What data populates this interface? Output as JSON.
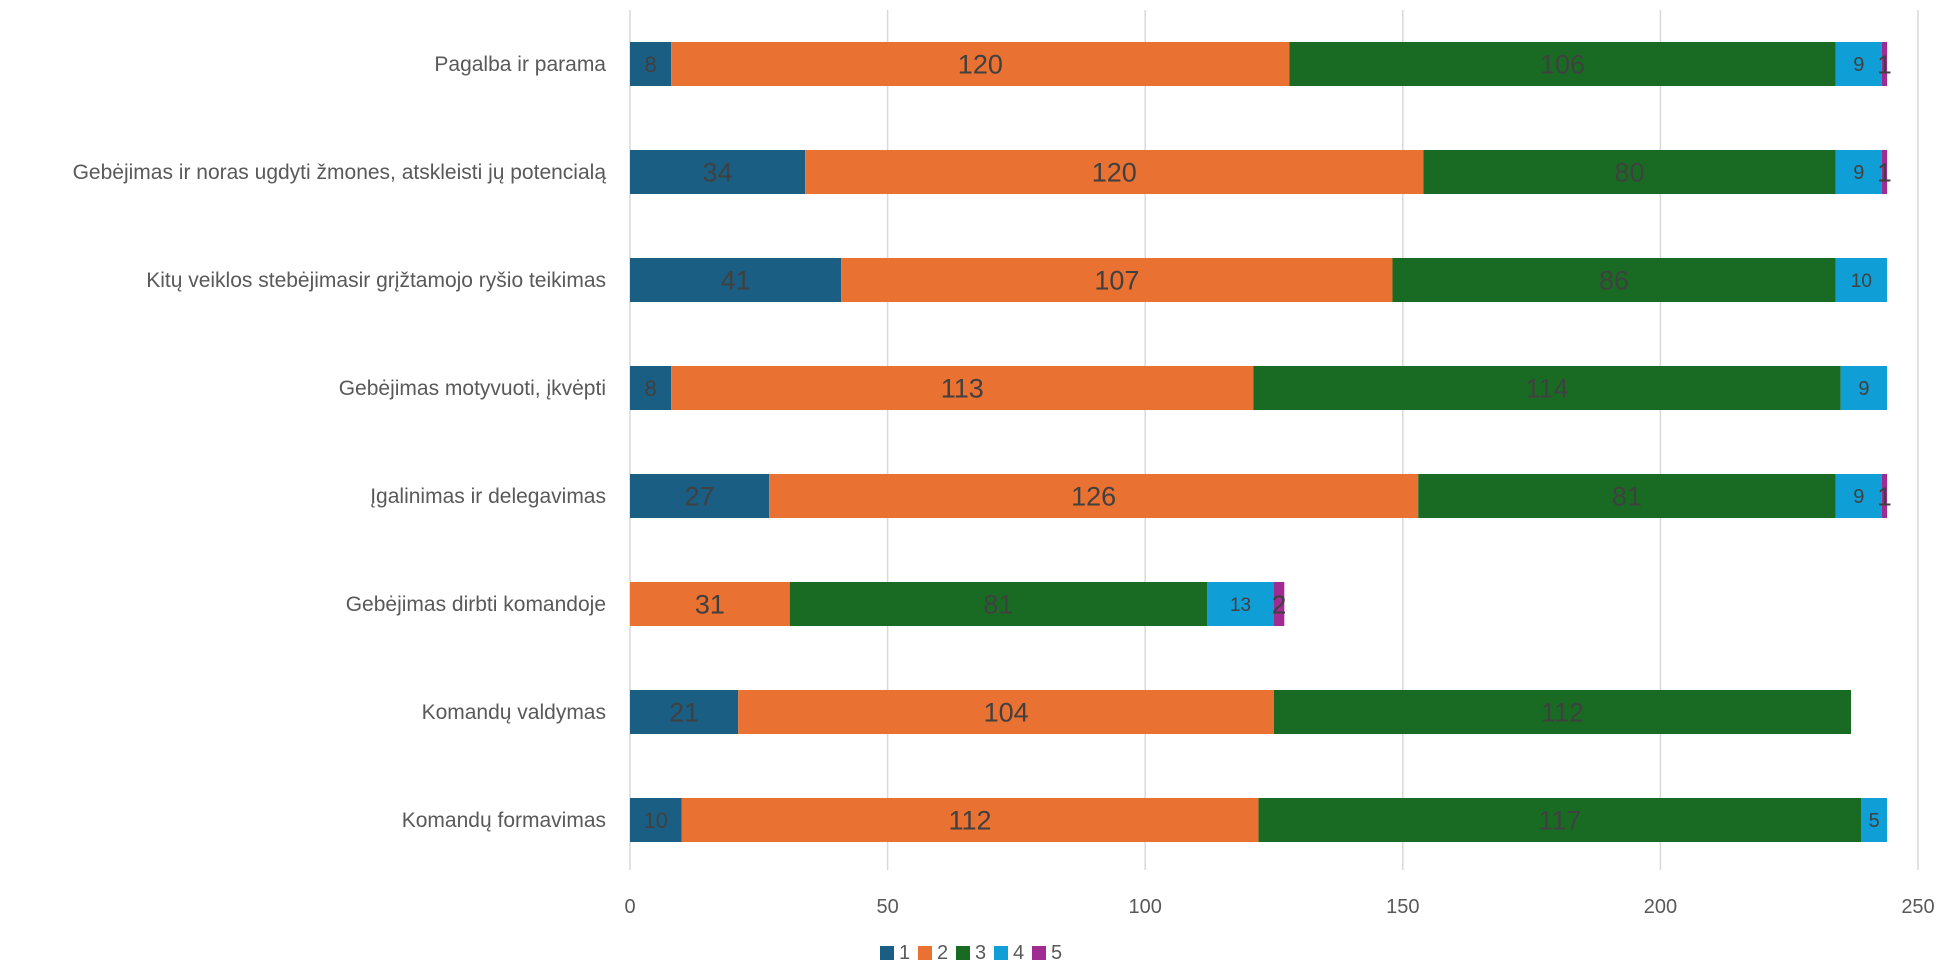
{
  "chart_data": {
    "type": "bar",
    "orientation": "horizontal",
    "stacked": true,
    "categories": [
      "Pagalba ir parama",
      "Gebėjimas ir noras ugdyti žmones, atskleisti jų potencialą",
      "Kitų veiklos stebėjimasir grįžtamojo ryšio teikimas",
      "Gebėjimas motyvuoti, įkvėpti",
      "Įgalinimas ir delegavimas",
      "Gebėjimas dirbti komandoje",
      "Komandų valdymas",
      "Komandų formavimas"
    ],
    "series": [
      {
        "name": "1",
        "color": "#1a5e83",
        "values": [
          8,
          34,
          41,
          8,
          27,
          0,
          21,
          10
        ]
      },
      {
        "name": "2",
        "color": "#e97132",
        "values": [
          120,
          120,
          107,
          113,
          126,
          31,
          104,
          112
        ]
      },
      {
        "name": "3",
        "color": "#196b24",
        "values": [
          106,
          80,
          86,
          114,
          81,
          81,
          112,
          117
        ]
      },
      {
        "name": "4",
        "color": "#0f9ed5",
        "values": [
          9,
          9,
          10,
          9,
          9,
          13,
          0,
          5
        ]
      },
      {
        "name": "5",
        "color": "#a02b93",
        "values": [
          1,
          1,
          0,
          0,
          1,
          2,
          0,
          0
        ]
      }
    ],
    "xlim": [
      0,
      250
    ],
    "xticks": [
      "0",
      "50",
      "100",
      "150",
      "200",
      "250"
    ],
    "grid": true,
    "legend": "bottom",
    "title": "",
    "xlabel": "",
    "ylabel": ""
  }
}
